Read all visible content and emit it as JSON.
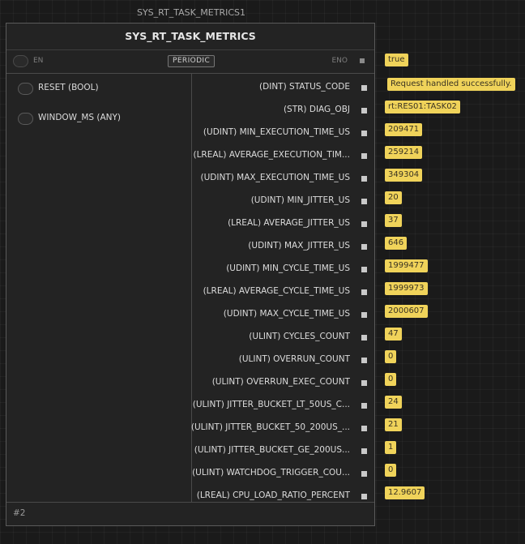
{
  "block": {
    "instance_name": "SYS_RT_TASK_METRICS1",
    "type_name": "SYS_RT_TASK_METRICS",
    "en_label": "EN",
    "eno_label": "ENO",
    "mode_badge": "PERIODIC",
    "footer_id": "#2"
  },
  "inputs": [
    {
      "label": "RESET (BOOL)"
    },
    {
      "label": "WINDOW_MS (ANY)"
    }
  ],
  "eno_value": "true",
  "outputs": [
    {
      "label": "(DINT) STATUS_CODE",
      "value": "Request handled successfully."
    },
    {
      "label": "(STR) DIAG_OBJ",
      "value": "rt:RES01:TASK02"
    },
    {
      "label": "(UDINT) MIN_EXECUTION_TIME_US",
      "value": "209471"
    },
    {
      "label": "(LREAL) AVERAGE_EXECUTION_TIM...",
      "value": "259214"
    },
    {
      "label": "(UDINT) MAX_EXECUTION_TIME_US",
      "value": "349304"
    },
    {
      "label": "(UDINT) MIN_JITTER_US",
      "value": "20"
    },
    {
      "label": "(LREAL) AVERAGE_JITTER_US",
      "value": "37"
    },
    {
      "label": "(UDINT) MAX_JITTER_US",
      "value": "646"
    },
    {
      "label": "(UDINT) MIN_CYCLE_TIME_US",
      "value": "1999477"
    },
    {
      "label": "(LREAL) AVERAGE_CYCLE_TIME_US",
      "value": "1999973"
    },
    {
      "label": "(UDINT) MAX_CYCLE_TIME_US",
      "value": "2000607"
    },
    {
      "label": "(ULINT) CYCLES_COUNT",
      "value": "47"
    },
    {
      "label": "(ULINT) OVERRUN_COUNT",
      "value": "0"
    },
    {
      "label": "(ULINT) OVERRUN_EXEC_COUNT",
      "value": "0"
    },
    {
      "label": "(ULINT) JITTER_BUCKET_LT_50US_C...",
      "value": "24"
    },
    {
      "label": "(ULINT) JITTER_BUCKET_50_200US_...",
      "value": "21"
    },
    {
      "label": "(ULINT) JITTER_BUCKET_GE_200US...",
      "value": "1"
    },
    {
      "label": "(ULINT) WATCHDOG_TRIGGER_COU...",
      "value": "0"
    },
    {
      "label": "(LREAL) CPU_LOAD_RATIO_PERCENT",
      "value": "12.9607"
    }
  ],
  "colors": {
    "value_tag_bg": "#f0d35a",
    "value_tag_text": "#3a3322",
    "block_bg": "#232323",
    "canvas_bg": "#1a1a1a"
  }
}
